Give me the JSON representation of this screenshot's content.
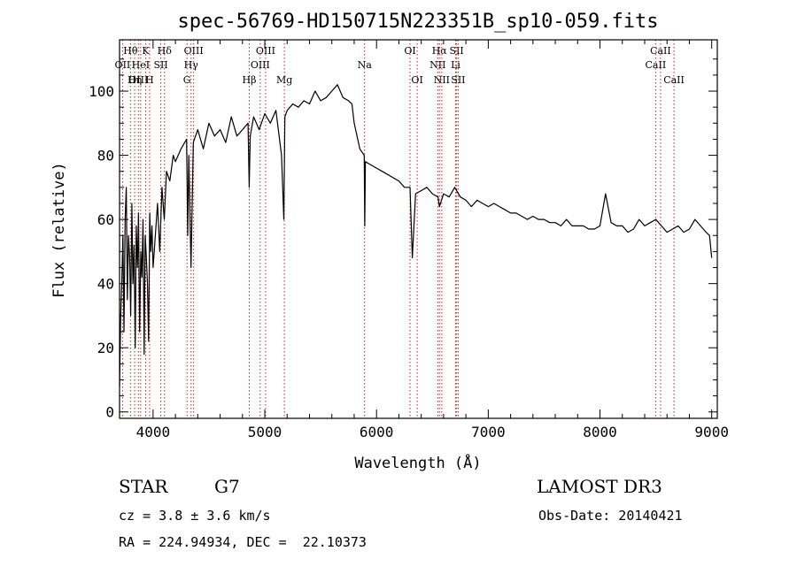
{
  "chart_data": {
    "type": "line",
    "title": "spec-56769-HD150715N223351B_sp10-059.fits",
    "xlabel": "Wavelength (Å)",
    "ylabel": "Flux (relative)",
    "xlim": [
      3700,
      9050
    ],
    "ylim": [
      -2,
      116
    ],
    "x_ticks": [
      4000,
      5000,
      6000,
      7000,
      8000,
      9000
    ],
    "y_ticks": [
      0,
      20,
      40,
      60,
      80,
      100
    ],
    "grid": false,
    "series": [
      {
        "x": [
          3700,
          3710,
          3720,
          3730,
          3740,
          3750,
          3760,
          3770,
          3780,
          3790,
          3800,
          3810,
          3820,
          3830,
          3840,
          3850,
          3860,
          3870,
          3880,
          3890,
          3900,
          3910,
          3920,
          3930,
          3940,
          3950,
          3960,
          3970,
          3980,
          3990,
          4000,
          4020,
          4040,
          4060,
          4080,
          4100,
          4120,
          4150,
          4180,
          4200,
          4250,
          4300,
          4310,
          4320,
          4340,
          4360,
          4400,
          4450,
          4500,
          4550,
          4600,
          4650,
          4700,
          4750,
          4800,
          4850,
          4860,
          4870,
          4900,
          4950,
          5000,
          5050,
          5100,
          5150,
          5170,
          5180,
          5200,
          5250,
          5300,
          5350,
          5400,
          5450,
          5500,
          5550,
          5600,
          5650,
          5700,
          5750,
          5780,
          5800,
          5850,
          5890,
          5895,
          5900,
          5950,
          6000,
          6050,
          6100,
          6150,
          6200,
          6250,
          6300,
          6320,
          6350,
          6400,
          6450,
          6500,
          6550,
          6563,
          6600,
          6650,
          6700,
          6750,
          6800,
          6850,
          6900,
          6950,
          7000,
          7050,
          7100,
          7150,
          7200,
          7250,
          7300,
          7350,
          7400,
          7450,
          7500,
          7550,
          7600,
          7650,
          7700,
          7750,
          7800,
          7850,
          7900,
          7950,
          8000,
          8050,
          8100,
          8150,
          8200,
          8250,
          8300,
          8350,
          8400,
          8450,
          8500,
          8550,
          8600,
          8650,
          8700,
          8750,
          8800,
          8850,
          8900,
          8950,
          8980,
          9000
        ],
        "y": [
          8,
          30,
          40,
          55,
          25,
          60,
          70,
          35,
          55,
          48,
          30,
          65,
          40,
          52,
          20,
          58,
          45,
          62,
          25,
          50,
          42,
          60,
          18,
          55,
          48,
          40,
          22,
          62,
          50,
          58,
          45,
          55,
          65,
          50,
          70,
          60,
          75,
          72,
          80,
          78,
          82,
          85,
          55,
          80,
          45,
          84,
          88,
          82,
          90,
          86,
          88,
          84,
          92,
          86,
          88,
          90,
          70,
          86,
          92,
          88,
          93,
          90,
          94,
          80,
          60,
          92,
          94,
          96,
          95,
          97,
          96,
          100,
          97,
          98,
          100,
          102,
          98,
          97,
          96,
          90,
          82,
          80,
          58,
          78,
          77,
          76,
          75,
          74,
          73,
          72,
          70,
          70,
          48,
          68,
          69,
          70,
          68,
          67,
          64,
          68,
          67,
          70,
          67,
          66,
          64,
          66,
          65,
          64,
          65,
          64,
          63,
          62,
          62,
          61,
          60,
          61,
          60,
          60,
          59,
          59,
          58,
          60,
          58,
          58,
          58,
          57,
          57,
          58,
          68,
          59,
          58,
          58,
          56,
          57,
          60,
          58,
          59,
          60,
          58,
          56,
          57,
          58,
          56,
          57,
          60,
          58,
          56,
          55,
          48
        ]
      }
    ],
    "spectral_lines": [
      {
        "label": "Hθ",
        "wave": 3798,
        "row": 1
      },
      {
        "label": "OII",
        "wave": 3727,
        "row": 2
      },
      {
        "label": "OIII",
        "wave": 3869,
        "row": 3
      },
      {
        "label": "K",
        "wave": 3934,
        "row": 1
      },
      {
        "label": "HeI",
        "wave": 3889,
        "row": 2
      },
      {
        "label": "Hη",
        "wave": 3835,
        "row": 3
      },
      {
        "label": "SII",
        "wave": 4069,
        "row": 2
      },
      {
        "label": "H",
        "wave": 3969,
        "row": 3
      },
      {
        "label": "Hδ",
        "wave": 4102,
        "row": 1
      },
      {
        "label": "OIII",
        "wave": 4363,
        "row": 1
      },
      {
        "label": "Hγ",
        "wave": 4340,
        "row": 2
      },
      {
        "label": "G",
        "wave": 4304,
        "row": 3
      },
      {
        "label": "OIII",
        "wave": 5007,
        "row": 1
      },
      {
        "label": "OIII",
        "wave": 4959,
        "row": 2
      },
      {
        "label": "Hβ",
        "wave": 4861,
        "row": 3
      },
      {
        "label": "Mg",
        "wave": 5175,
        "row": 3
      },
      {
        "label": "Na",
        "wave": 5893,
        "row": 2
      },
      {
        "label": "OI",
        "wave": 6300,
        "row": 1
      },
      {
        "label": "OI",
        "wave": 6364,
        "row": 3
      },
      {
        "label": "Hα",
        "wave": 6563,
        "row": 1
      },
      {
        "label": "NII",
        "wave": 6548,
        "row": 2
      },
      {
        "label": "NII",
        "wave": 6584,
        "row": 3
      },
      {
        "label": "SII",
        "wave": 6717,
        "row": 1
      },
      {
        "label": "Li",
        "wave": 6708,
        "row": 2
      },
      {
        "label": "SII",
        "wave": 6731,
        "row": 3
      },
      {
        "label": "CaII",
        "wave": 8542,
        "row": 1
      },
      {
        "label": "CaII",
        "wave": 8498,
        "row": 2
      },
      {
        "label": "CaII",
        "wave": 8662,
        "row": 3
      }
    ]
  },
  "info": {
    "object_type": "STAR",
    "subclass": "G7",
    "survey": "LAMOST DR3",
    "cz": "cz = 3.8 ± 3.6 km/s",
    "obs_date": "Obs-Date: 20140421",
    "coords": "RA = 224.94934, DEC =  22.10373"
  }
}
